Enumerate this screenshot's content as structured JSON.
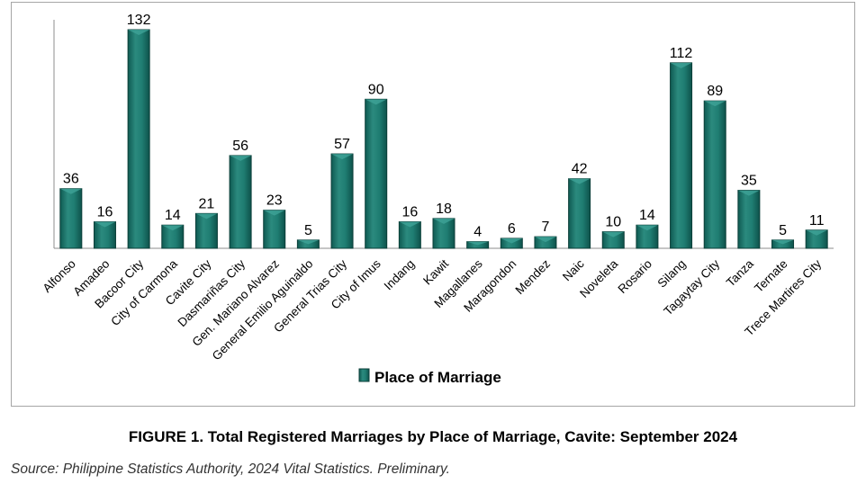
{
  "chart_data": {
    "type": "bar",
    "categories": [
      "Alfonso",
      "Amadeo",
      "Bacoor City",
      "City of Carmona",
      "Cavite City",
      "Dasmariñas City",
      "Gen. Mariano Alvarez",
      "General Emilio Aguinaldo",
      "General Trias City",
      "City of Imus",
      "Indang",
      "Kawit",
      "Magallanes",
      "Maragondon",
      "Mendez",
      "Naic",
      "Noveleta",
      "Rosario",
      "Silang",
      "Tagaytay City",
      "Tanza",
      "Ternate",
      "Trece Martires City"
    ],
    "series": [
      {
        "name": "Place of Marriage",
        "values": [
          36,
          16,
          132,
          14,
          21,
          56,
          23,
          5,
          57,
          90,
          16,
          18,
          4,
          6,
          7,
          42,
          10,
          14,
          112,
          89,
          35,
          5,
          11
        ]
      }
    ],
    "ylim": [
      0,
      132
    ],
    "grid": false,
    "legend": "bottom-center",
    "colors": {
      "bar": "#1a7369",
      "bar_edge": "#0c3f39",
      "bar_highlight": "#3fa397"
    }
  },
  "caption": "FIGURE 1. Total Registered Marriages by Place of Marriage, Cavite: September 2024",
  "source": "Source: Philippine Statistics Authority, 2024 Vital Statistics. Preliminary."
}
